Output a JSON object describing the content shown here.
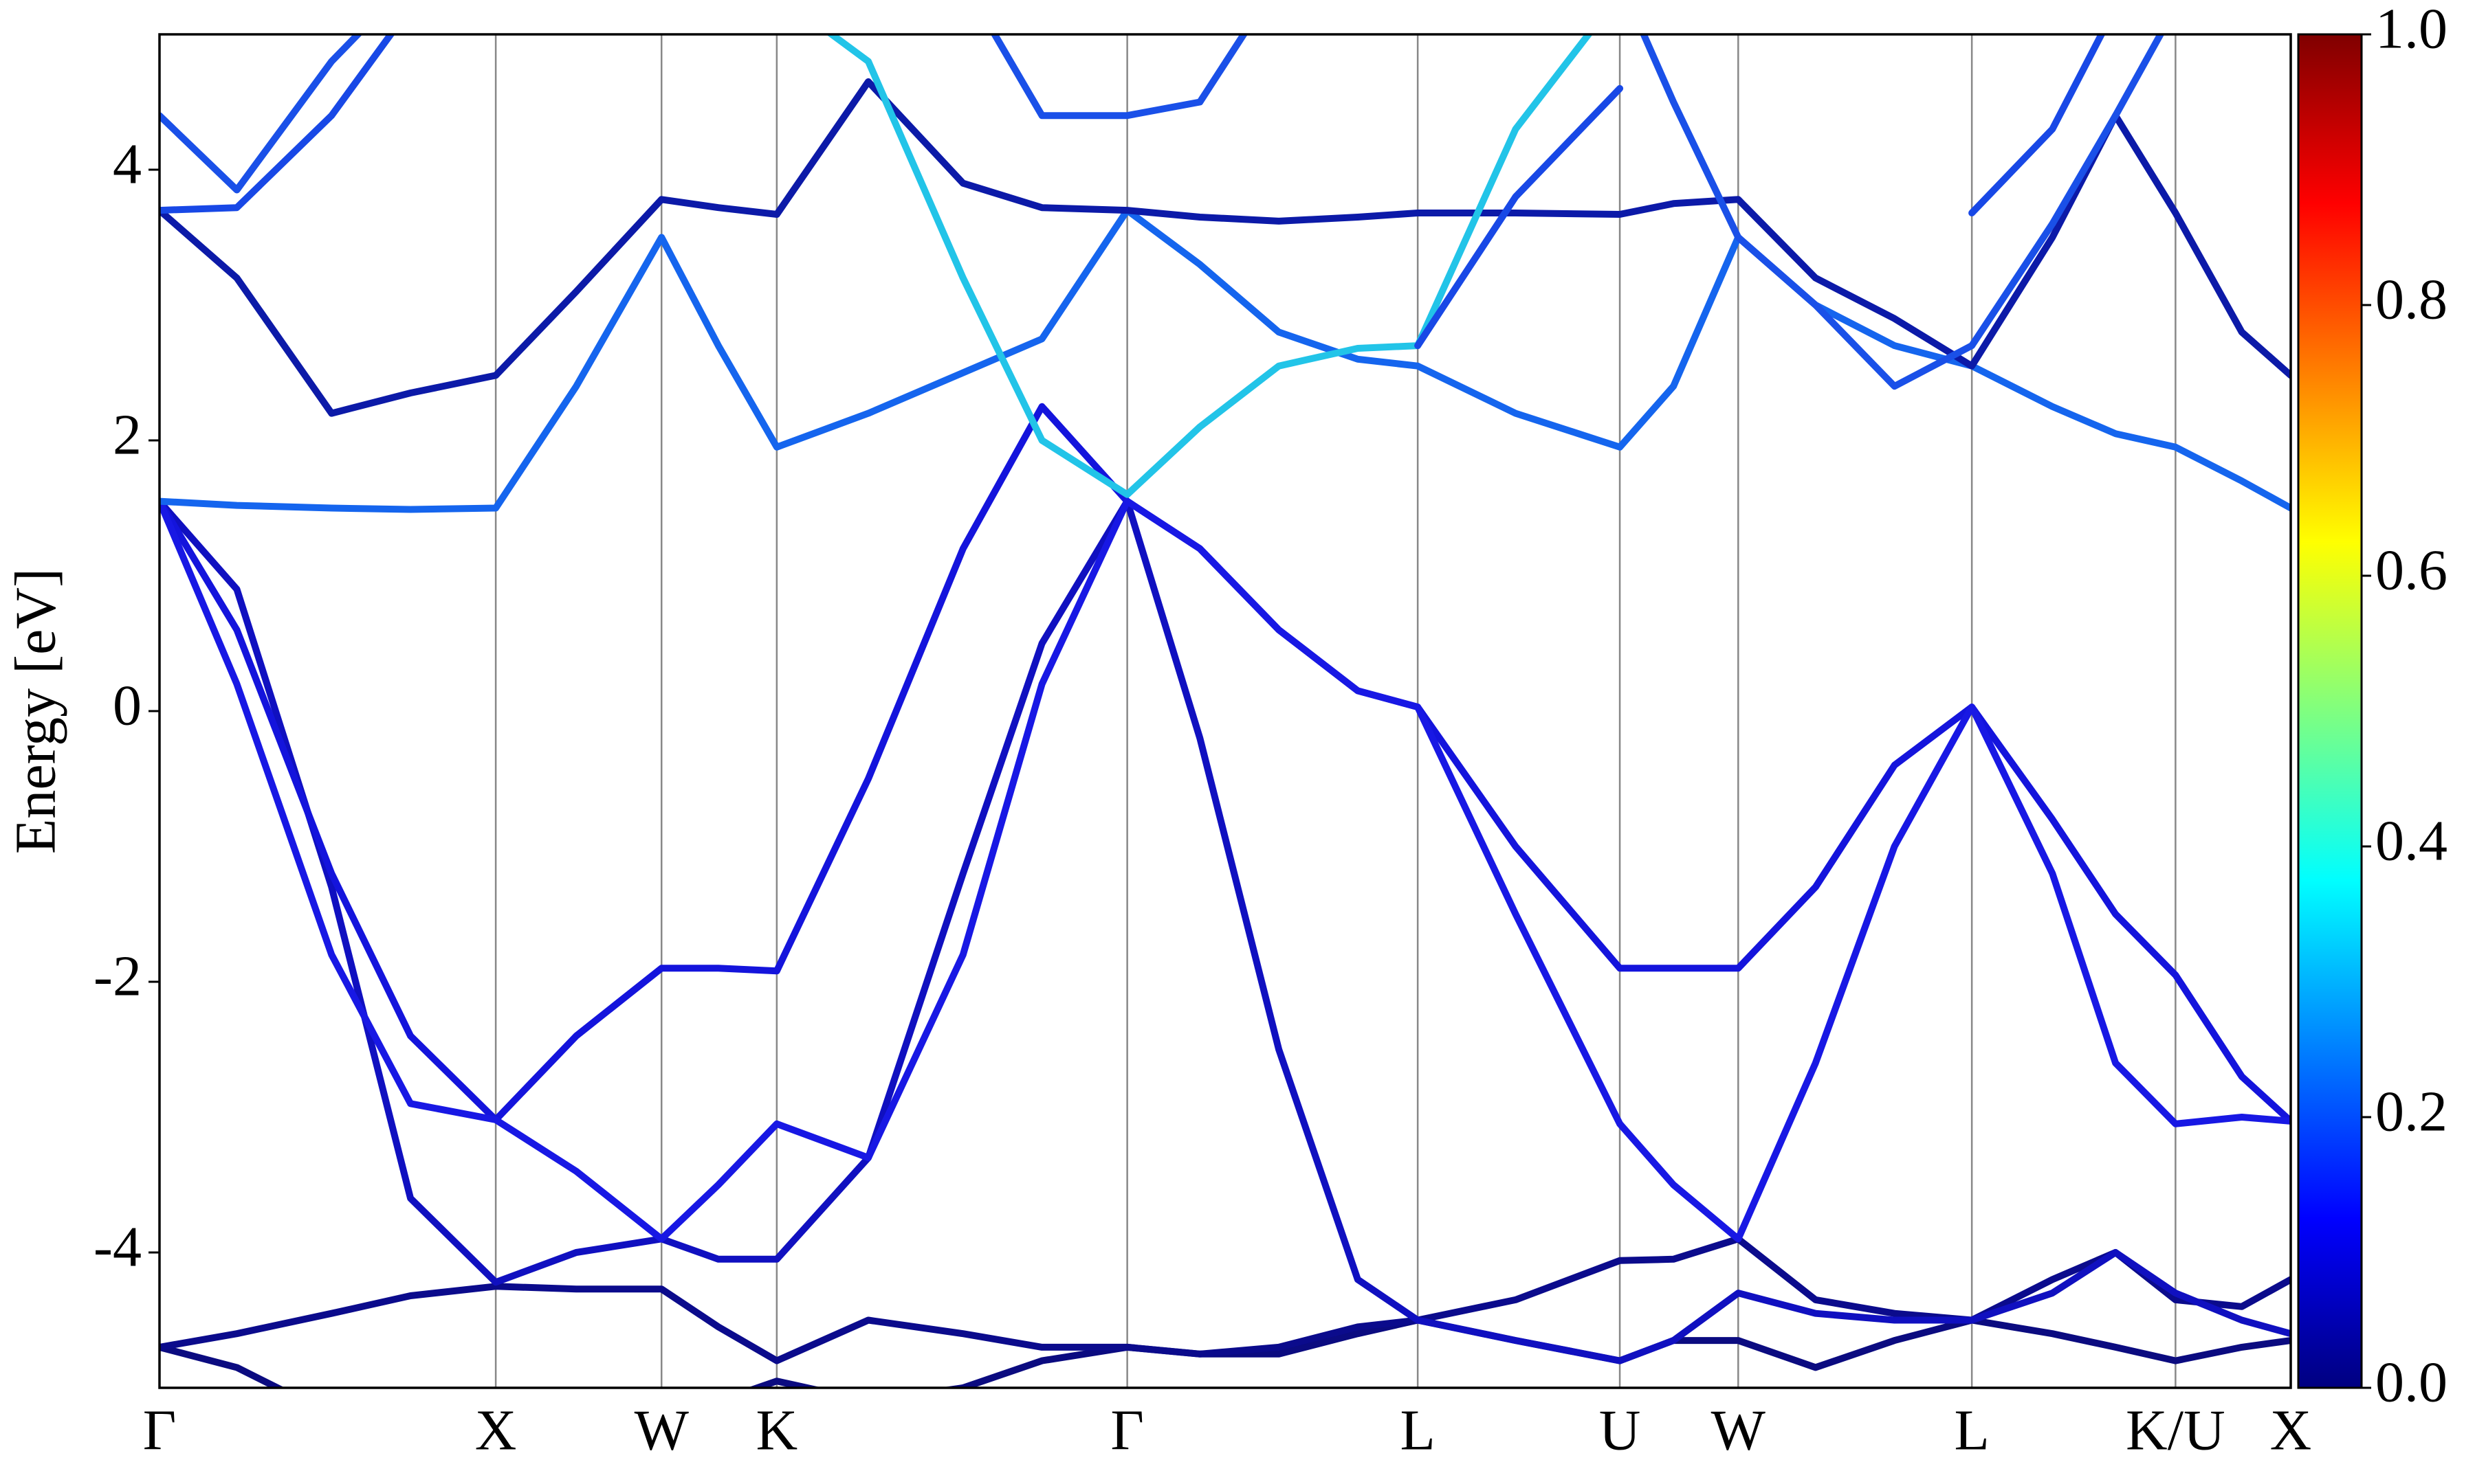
{
  "chart_data": {
    "type": "line",
    "ylabel": "Energy [eV]",
    "x": [
      0,
      0.49,
      1.09,
      1.59,
      2.13,
      2.64,
      3.18,
      3.54,
      3.91,
      4.49,
      5.09,
      5.59,
      6.13,
      6.59,
      7.09,
      7.59,
      7.97,
      8.59,
      9.25,
      9.59,
      10.0,
      10.49,
      10.99,
      11.48,
      11.99,
      12.39,
      12.77,
      13.19,
      13.5
    ],
    "xlim": [
      0,
      13.5
    ],
    "xticks": [
      {
        "value": 0,
        "label": "Γ"
      },
      {
        "value": 2.13,
        "label": "X"
      },
      {
        "value": 3.18,
        "label": "W"
      },
      {
        "value": 3.91,
        "label": "K"
      },
      {
        "value": 6.13,
        "label": "Γ"
      },
      {
        "value": 7.97,
        "label": "L"
      },
      {
        "value": 9.25,
        "label": "U"
      },
      {
        "value": 10.0,
        "label": "W"
      },
      {
        "value": 11.48,
        "label": "L"
      },
      {
        "value": 12.77,
        "label": "K/U"
      },
      {
        "value": 13.5,
        "label": "X"
      }
    ],
    "grid": "x",
    "ylim": [
      -5,
      5
    ],
    "yticks": [
      -4,
      -2,
      0,
      2,
      4
    ],
    "series": [
      {
        "color": "#0b0b80",
        "values": [
          -4.7,
          -4.85,
          -5.2,
          -5.3,
          -5.3,
          -5.2,
          -5.2,
          -5.1,
          -4.95,
          -5.1,
          -5.0,
          -4.8,
          -4.7,
          -4.75,
          -4.75,
          -4.6,
          -4.5,
          -4.65,
          -4.8,
          -4.65,
          -4.65,
          -4.85,
          -4.65,
          -4.5,
          -4.6,
          -4.7,
          -4.8,
          -4.7,
          -4.65
        ]
      },
      {
        "color": "#0b0b8c",
        "values": [
          -4.7,
          -4.6,
          -4.45,
          -4.32,
          -4.25,
          -4.27,
          -4.27,
          -4.55,
          -4.8,
          -4.5,
          -4.6,
          -4.7,
          -4.7,
          -4.75,
          -4.7,
          -4.55,
          -4.5,
          -4.35,
          -4.06,
          -4.05,
          -3.9,
          -4.35,
          -4.45,
          -4.5,
          -4.2,
          -4.0,
          -4.35,
          -4.4,
          -4.2
        ]
      },
      {
        "color": "#1010c0",
        "values": [
          1.55,
          0.9,
          -1.3,
          -3.6,
          -4.22,
          -4.0,
          -3.9,
          -4.05,
          -4.05,
          -3.3,
          -1.2,
          0.5,
          1.55,
          -0.2,
          -2.5,
          -4.2,
          -4.5,
          -4.65,
          -4.8,
          -4.65,
          -4.3,
          -4.45,
          -4.5,
          -4.5,
          -4.3,
          -4.0,
          -4.3,
          -4.5,
          -4.6
        ]
      },
      {
        "color": "#1414dc",
        "values": [
          1.55,
          0.6,
          -1.2,
          -2.4,
          -3.02,
          -2.4,
          -1.9,
          -1.9,
          -1.92,
          -0.5,
          1.2,
          2.25,
          1.55,
          1.2,
          0.6,
          0.15,
          0.03,
          -1.0,
          -1.9,
          -1.9,
          -1.9,
          -1.3,
          -0.4,
          0.03,
          -0.8,
          -1.5,
          -1.95,
          -2.7,
          -3.03
        ]
      },
      {
        "color": "#1818e4",
        "values": [
          1.55,
          0.2,
          -1.8,
          -2.9,
          -3.02,
          -3.4,
          -3.9,
          -3.5,
          -3.05,
          -3.3,
          -1.8,
          0.2,
          1.55,
          1.2,
          0.6,
          0.15,
          0.03,
          -1.5,
          -3.05,
          -3.5,
          -3.9,
          -2.6,
          -1.0,
          0.03,
          -1.2,
          -2.6,
          -3.05,
          -3.0,
          -3.03
        ]
      },
      {
        "color": "#1565ee",
        "values": [
          1.55,
          1.52,
          1.5,
          1.49,
          1.5,
          2.4,
          3.5,
          2.7,
          1.95,
          2.2,
          2.5,
          2.75,
          3.7,
          3.3,
          2.8,
          2.6,
          2.55,
          2.2,
          1.95,
          2.4,
          3.5,
          3.0,
          2.7,
          2.55,
          2.25,
          2.05,
          1.95,
          1.7,
          1.5
        ]
      },
      {
        "color": "#0c1aa8",
        "values": [
          3.7,
          3.2,
          2.2,
          2.35,
          2.48,
          3.1,
          3.78,
          3.72,
          3.67,
          4.65,
          3.9,
          3.72,
          3.7,
          3.65,
          3.62,
          3.65,
          3.68,
          3.68,
          3.67,
          3.75,
          3.78,
          3.2,
          2.9,
          2.55,
          3.5,
          4.4,
          3.68,
          2.8,
          2.48
        ]
      },
      {
        "color": "#22c4e8",
        "values": [
          null,
          null,
          null,
          null,
          null,
          null,
          null,
          null,
          5.3,
          4.8,
          3.2,
          2.0,
          1.6,
          2.1,
          2.55,
          2.68,
          2.7,
          4.3,
          5.3,
          null,
          null,
          null,
          null,
          null,
          null,
          null,
          null,
          null,
          null
        ]
      },
      {
        "color": "#1a50e8",
        "values": [
          4.4,
          3.85,
          4.8,
          5.4,
          null,
          null,
          null,
          null,
          null,
          null,
          5.4,
          4.4,
          4.4,
          4.5,
          5.4,
          null,
          null,
          null,
          5.4,
          4.5,
          3.5,
          3.0,
          2.4,
          2.7,
          3.6,
          4.4,
          5.2,
          null,
          null
        ]
      },
      {
        "color": "#1848e6",
        "values": [
          3.7,
          3.72,
          4.4,
          5.2,
          null,
          null,
          null,
          null,
          null,
          null,
          null,
          null,
          null,
          null,
          null,
          null,
          2.7,
          3.8,
          4.6,
          null,
          null,
          null,
          null,
          3.68,
          4.3,
          5.2,
          null,
          null,
          null
        ]
      }
    ],
    "colorbar": {
      "lim": [
        0,
        1
      ],
      "ticks": [
        {
          "value": 0,
          "label": "0.0"
        },
        0.2,
        0.4,
        0.6,
        0.8,
        {
          "value": 1,
          "label": "1.0"
        }
      ]
    }
  }
}
